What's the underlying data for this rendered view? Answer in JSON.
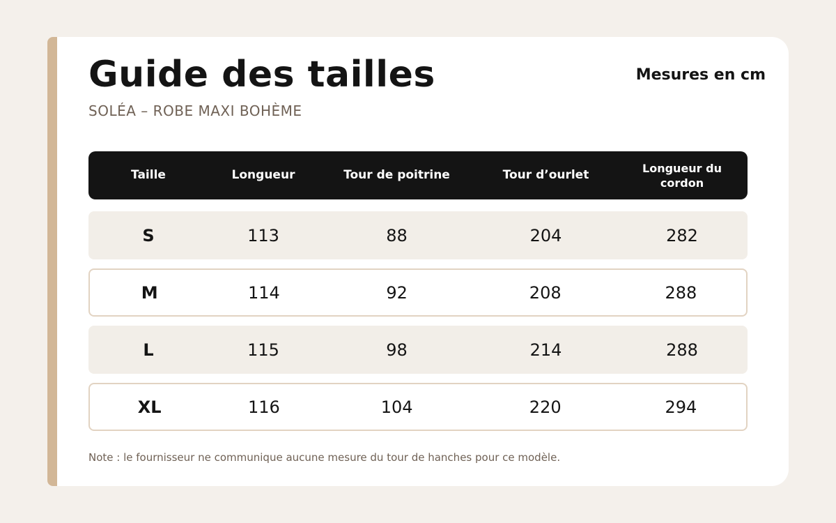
{
  "header": {
    "title": "Guide des tailles",
    "subtitle": "SOLÉA – ROBE MAXI BOHÈME",
    "units": "Mesures en cm"
  },
  "table": {
    "columns": [
      "Taille",
      "Longueur",
      "Tour de poitrine",
      "Tour d’ourlet",
      "Longueur du cordon"
    ],
    "rows": [
      [
        "S",
        "113",
        "88",
        "204",
        "282"
      ],
      [
        "M",
        "114",
        "92",
        "208",
        "288"
      ],
      [
        "L",
        "115",
        "98",
        "214",
        "288"
      ],
      [
        "XL",
        "116",
        "104",
        "220",
        "294"
      ]
    ]
  },
  "note": "Note : le fournisseur ne communique aucune mesure du tour de hanches pour ce modèle.",
  "colors": {
    "accent": "#d2b797",
    "header_bg": "#141414",
    "row_shaded": "#f2eee8",
    "row_border": "#e2d3c2",
    "page_bg": "#f4f0eb"
  }
}
